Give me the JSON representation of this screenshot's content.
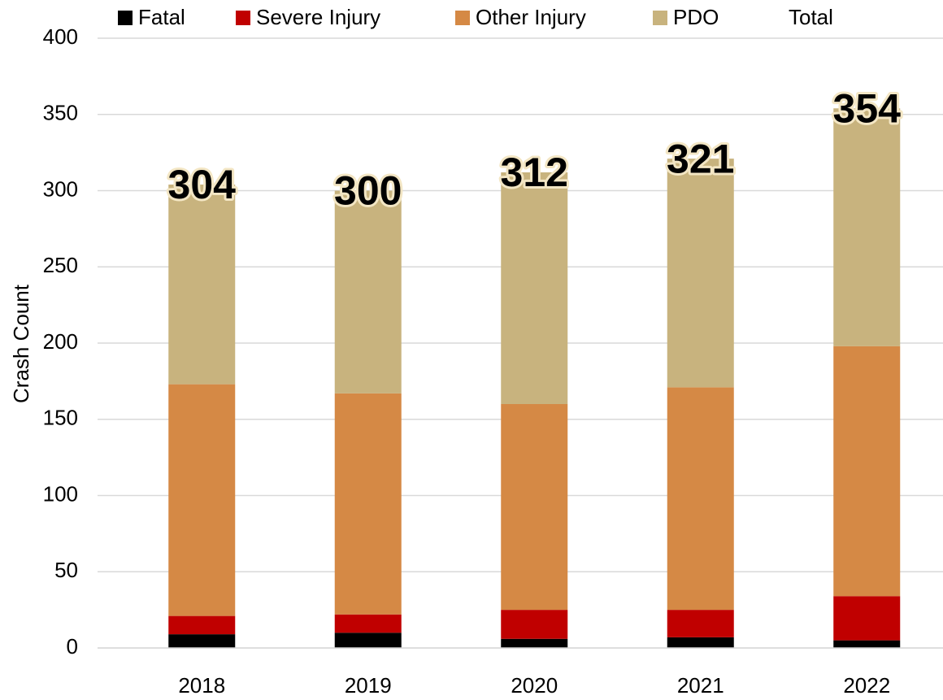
{
  "chart_data": {
    "type": "stacked_bar",
    "y_label": "Crash Count",
    "categories": [
      "2018",
      "2019",
      "2020",
      "2021",
      "2022"
    ],
    "series": [
      {
        "name": "Fatal",
        "color": "#000000",
        "values": [
          9,
          10,
          6,
          7,
          5
        ]
      },
      {
        "name": "Severe Injury",
        "color": "#c00000",
        "values": [
          12,
          12,
          19,
          18,
          29
        ]
      },
      {
        "name": "Other Injury",
        "color": "#d58945",
        "values": [
          152,
          145,
          135,
          146,
          164
        ]
      },
      {
        "name": "PDO",
        "color": "#c8b37e",
        "values": [
          131,
          133,
          152,
          150,
          156
        ]
      }
    ],
    "totals": {
      "name": "Total",
      "values": [
        304,
        300,
        312,
        321,
        354
      ]
    },
    "ylim": [
      0,
      400
    ],
    "yticks": [
      0,
      50,
      100,
      150,
      200,
      250,
      300,
      350,
      400
    ],
    "grid": true,
    "legend": "top"
  }
}
